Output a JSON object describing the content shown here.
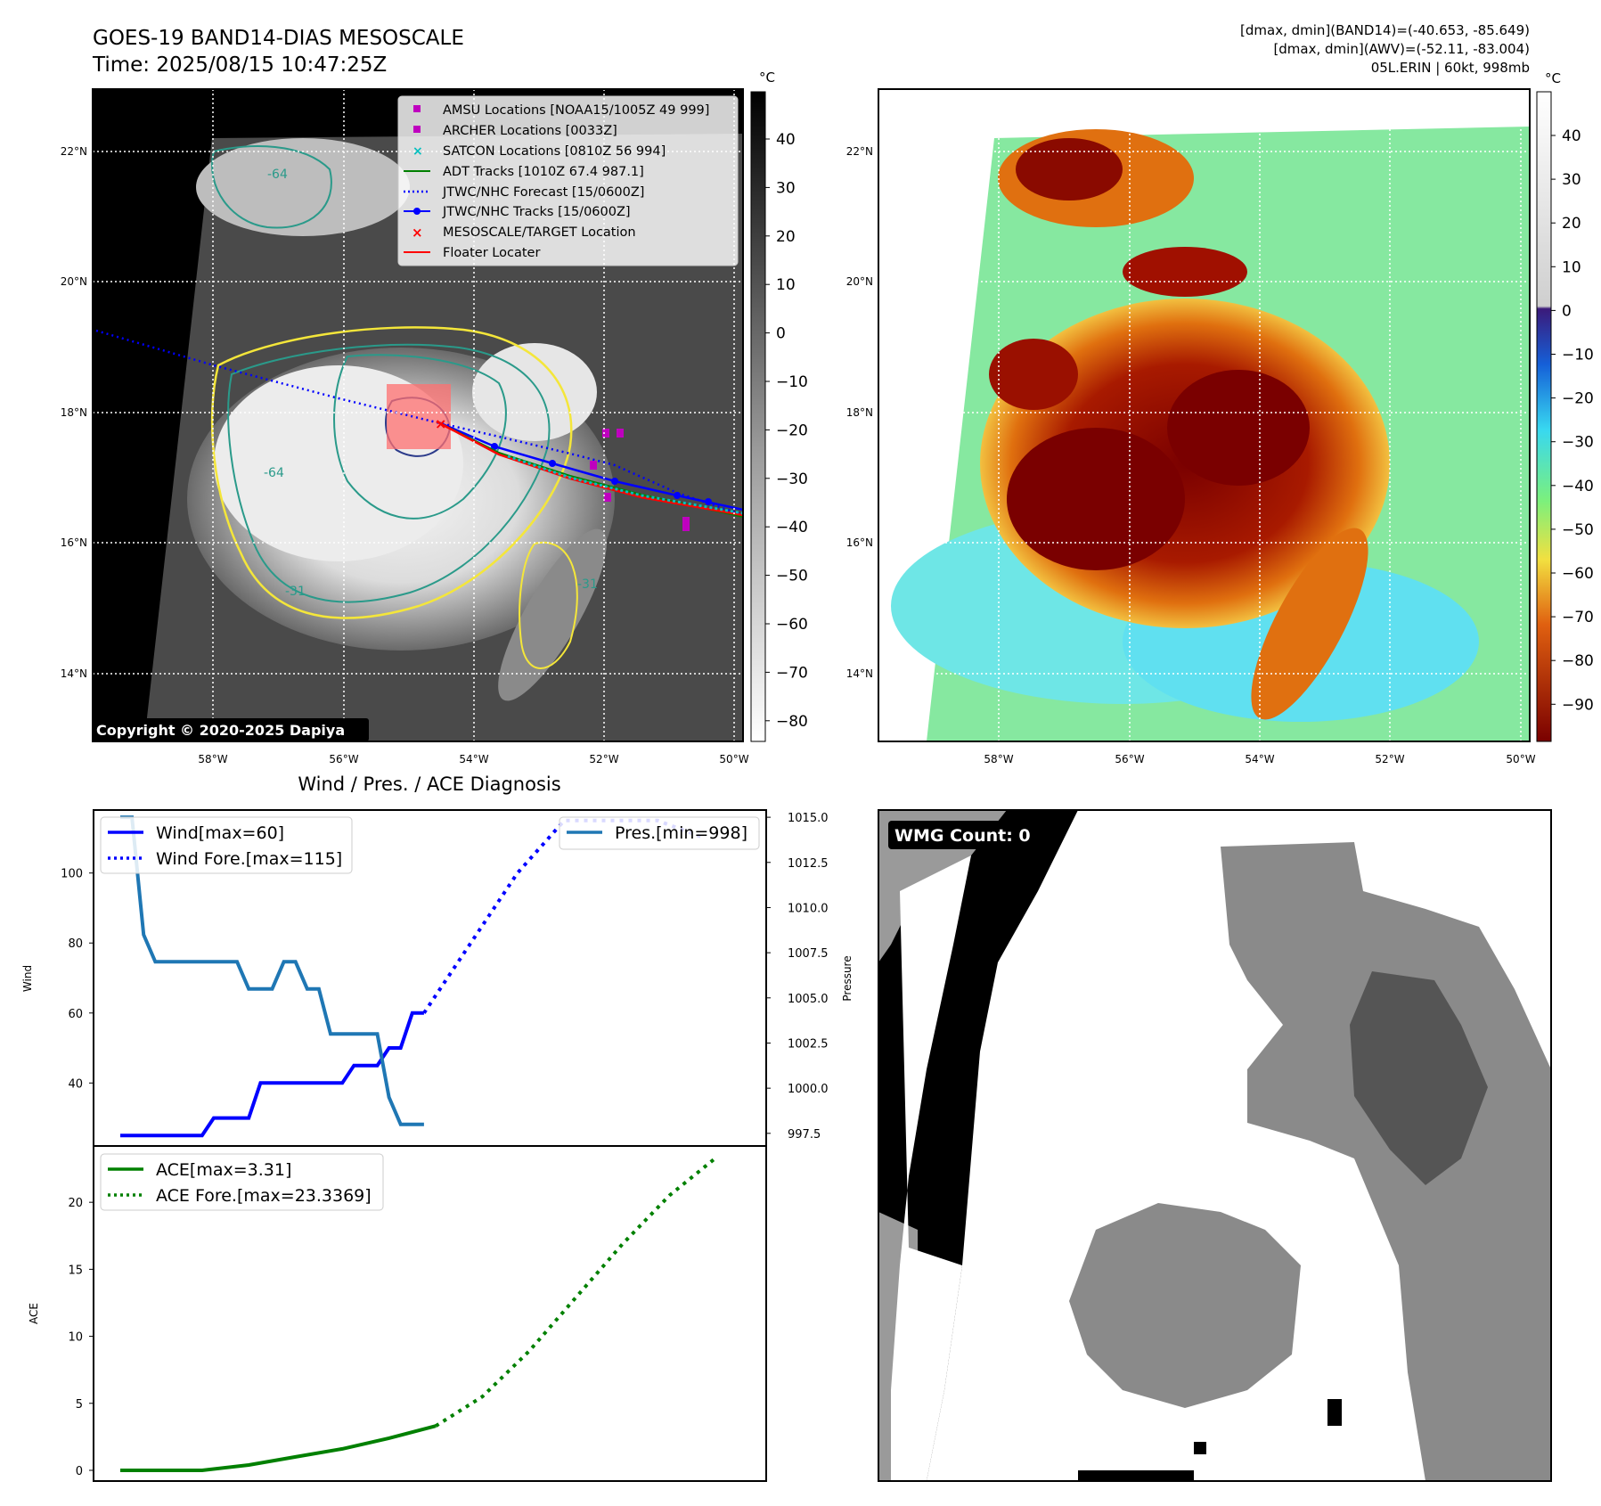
{
  "header": {
    "title_line1": "GOES-19 BAND14-DIAS MESOSCALE",
    "title_line2": "Time: 2025/08/15 10:47:25Z",
    "stats_line1": "[dmax, dmin](BAND14)=(-40.653, -85.649)",
    "stats_line2": "[dmax, dmin](AWV)=(-52.11, -83.004)",
    "stats_line3": "05L.ERIN | 60kt, 998mb",
    "copyright": "Copyright © 2020-2025 Dapiya"
  },
  "map": {
    "lon_labels": [
      "58°W",
      "56°W",
      "54°W",
      "52°W",
      "50°W"
    ],
    "lat_labels": [
      "22°N",
      "20°N",
      "18°N",
      "16°N",
      "14°N"
    ],
    "contour_labels": [
      "-64",
      "-64",
      "-31",
      "-31"
    ]
  },
  "legend_map": {
    "items": [
      {
        "label": "AMSU Locations [NOAA15/1005Z 49 999]",
        "color": "#bf00bf",
        "marker": "square"
      },
      {
        "label": "ARCHER Locations [0033Z]",
        "color": "#bf00bf",
        "marker": "square"
      },
      {
        "label": "SATCON Locations [0810Z 56 994]",
        "color": "#00bfbf",
        "marker": "x"
      },
      {
        "label": "ADT Tracks [1010Z 67.4 987.1]",
        "color": "#008000",
        "marker": "line"
      },
      {
        "label": "JTWC/NHC Forecast [15/0600Z]",
        "color": "#0000ff",
        "marker": "dotted"
      },
      {
        "label": "JTWC/NHC Tracks [15/0600Z]",
        "color": "#0000ff",
        "marker": "line-dot"
      },
      {
        "label": "MESOSCALE/TARGET Location",
        "color": "#ff0000",
        "marker": "x"
      },
      {
        "label": "Floater Locater",
        "color": "#ff0000",
        "marker": "line"
      }
    ]
  },
  "colorbar_gray": {
    "unit": "°C",
    "ticks": [
      "40",
      "30",
      "20",
      "10",
      "0",
      "−10",
      "−20",
      "−30",
      "−40",
      "−50",
      "−60",
      "−70",
      "−80"
    ]
  },
  "colorbar_awv": {
    "unit": "°C",
    "ticks": [
      "40",
      "30",
      "20",
      "10",
      "0",
      "−10",
      "−20",
      "−30",
      "−40",
      "−50",
      "−60",
      "−70",
      "−80",
      "−90"
    ]
  },
  "wmg": {
    "label": "WMG Count: 0"
  },
  "chart_data": [
    {
      "type": "line",
      "title": "Wind / Pres. / ACE Diagnosis",
      "ylabel": "Wind",
      "ylabel_right": "Pressure",
      "ylim": [
        22,
        118
      ],
      "ylim_right": [
        996.8,
        1015.4
      ],
      "yticks": [
        40,
        60,
        80,
        100
      ],
      "yticks_right": [
        997.5,
        1000.0,
        1002.5,
        1005.0,
        1007.5,
        1010.0,
        1012.5,
        1015.0
      ],
      "x": [
        0,
        1,
        2,
        3,
        4,
        5,
        6,
        7,
        8,
        9,
        10,
        11,
        12,
        13,
        14,
        15,
        16,
        17,
        18,
        19,
        20,
        21,
        22,
        23,
        24,
        25,
        26
      ],
      "series": [
        {
          "name": "Wind[max=60]",
          "color": "#0000ff",
          "style": "solid",
          "values": [
            25,
            25,
            25,
            25,
            25,
            25,
            25,
            25,
            30,
            30,
            30,
            30,
            40,
            40,
            40,
            40,
            40,
            40,
            40,
            40,
            45,
            45,
            45,
            50,
            50,
            60,
            60
          ]
        },
        {
          "name": "Wind Fore.[max=115]",
          "color": "#0000ff",
          "style": "dotted",
          "x": [
            26,
            30,
            34,
            38,
            42,
            46,
            50
          ],
          "values": [
            60,
            80,
            100,
            115,
            115,
            115,
            110
          ]
        },
        {
          "name": "Pres.[min=998]",
          "color": "#1f77b4",
          "style": "solid",
          "axis": "right",
          "x": [
            0,
            1,
            2,
            3,
            4,
            5,
            6,
            7,
            8,
            9,
            10,
            11,
            12,
            13,
            14,
            15,
            16,
            17,
            18,
            19,
            20,
            21,
            22,
            23,
            24,
            25,
            26
          ],
          "values": [
            1015,
            1015,
            1008.5,
            1007,
            1007,
            1007,
            1007,
            1007,
            1007,
            1007,
            1007,
            1005.5,
            1005.5,
            1005.5,
            1007,
            1007,
            1005.5,
            1005.5,
            1003,
            1003,
            1003,
            1003,
            1003,
            999.5,
            998,
            998,
            998
          ]
        }
      ]
    },
    {
      "type": "line",
      "ylabel": "ACE",
      "ylim": [
        -0.8,
        24.2
      ],
      "yticks": [
        0,
        5,
        10,
        15,
        20
      ],
      "series": [
        {
          "name": "ACE[max=3.31]",
          "color": "#008000",
          "style": "solid",
          "x": [
            0,
            3,
            7,
            11,
            15,
            19,
            23,
            27
          ],
          "values": [
            0,
            0,
            0,
            0.4,
            1.0,
            1.6,
            2.4,
            3.31
          ]
        },
        {
          "name": "ACE Fore.[max=23.3369]",
          "color": "#008000",
          "style": "dotted",
          "x": [
            27,
            31,
            35,
            39,
            43,
            47,
            51
          ],
          "values": [
            3.31,
            5.5,
            8.9,
            12.9,
            16.9,
            20.5,
            23.3369
          ]
        }
      ]
    }
  ]
}
